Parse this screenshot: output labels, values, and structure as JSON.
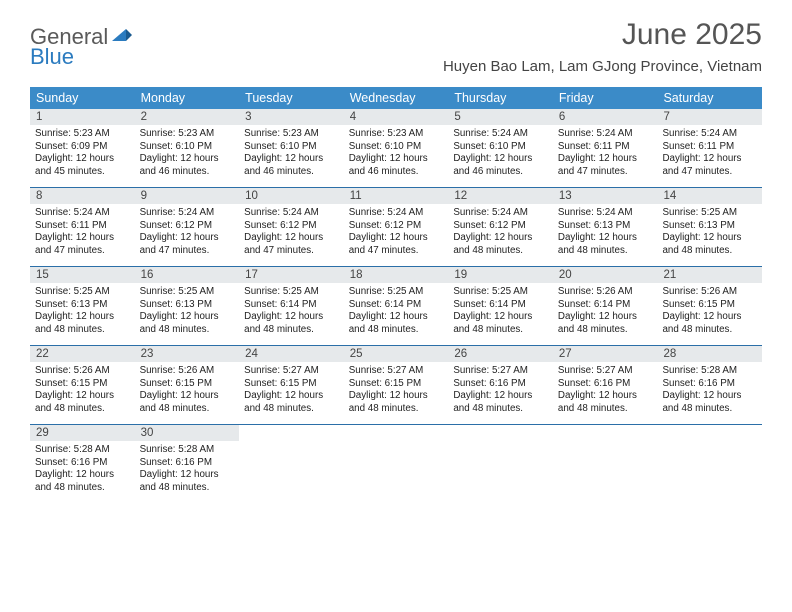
{
  "logo": {
    "general": "General",
    "blue": "Blue"
  },
  "title": "June 2025",
  "subtitle": "Huyen Bao Lam, Lam GJong Province, Vietnam",
  "colors": {
    "header_bg": "#3b8bc8",
    "header_text": "#ffffff",
    "daynum_bg": "#e6e9eb",
    "week_border": "#2b6fa8",
    "title_color": "#555555",
    "logo_blue": "#2b7bbf",
    "logo_gray": "#5a5a5a"
  },
  "day_names": [
    "Sunday",
    "Monday",
    "Tuesday",
    "Wednesday",
    "Thursday",
    "Friday",
    "Saturday"
  ],
  "weeks": [
    [
      {
        "n": "1",
        "sr": "5:23 AM",
        "ss": "6:09 PM",
        "dl": "12 hours and 45 minutes."
      },
      {
        "n": "2",
        "sr": "5:23 AM",
        "ss": "6:10 PM",
        "dl": "12 hours and 46 minutes."
      },
      {
        "n": "3",
        "sr": "5:23 AM",
        "ss": "6:10 PM",
        "dl": "12 hours and 46 minutes."
      },
      {
        "n": "4",
        "sr": "5:23 AM",
        "ss": "6:10 PM",
        "dl": "12 hours and 46 minutes."
      },
      {
        "n": "5",
        "sr": "5:24 AM",
        "ss": "6:10 PM",
        "dl": "12 hours and 46 minutes."
      },
      {
        "n": "6",
        "sr": "5:24 AM",
        "ss": "6:11 PM",
        "dl": "12 hours and 47 minutes."
      },
      {
        "n": "7",
        "sr": "5:24 AM",
        "ss": "6:11 PM",
        "dl": "12 hours and 47 minutes."
      }
    ],
    [
      {
        "n": "8",
        "sr": "5:24 AM",
        "ss": "6:11 PM",
        "dl": "12 hours and 47 minutes."
      },
      {
        "n": "9",
        "sr": "5:24 AM",
        "ss": "6:12 PM",
        "dl": "12 hours and 47 minutes."
      },
      {
        "n": "10",
        "sr": "5:24 AM",
        "ss": "6:12 PM",
        "dl": "12 hours and 47 minutes."
      },
      {
        "n": "11",
        "sr": "5:24 AM",
        "ss": "6:12 PM",
        "dl": "12 hours and 47 minutes."
      },
      {
        "n": "12",
        "sr": "5:24 AM",
        "ss": "6:12 PM",
        "dl": "12 hours and 48 minutes."
      },
      {
        "n": "13",
        "sr": "5:24 AM",
        "ss": "6:13 PM",
        "dl": "12 hours and 48 minutes."
      },
      {
        "n": "14",
        "sr": "5:25 AM",
        "ss": "6:13 PM",
        "dl": "12 hours and 48 minutes."
      }
    ],
    [
      {
        "n": "15",
        "sr": "5:25 AM",
        "ss": "6:13 PM",
        "dl": "12 hours and 48 minutes."
      },
      {
        "n": "16",
        "sr": "5:25 AM",
        "ss": "6:13 PM",
        "dl": "12 hours and 48 minutes."
      },
      {
        "n": "17",
        "sr": "5:25 AM",
        "ss": "6:14 PM",
        "dl": "12 hours and 48 minutes."
      },
      {
        "n": "18",
        "sr": "5:25 AM",
        "ss": "6:14 PM",
        "dl": "12 hours and 48 minutes."
      },
      {
        "n": "19",
        "sr": "5:25 AM",
        "ss": "6:14 PM",
        "dl": "12 hours and 48 minutes."
      },
      {
        "n": "20",
        "sr": "5:26 AM",
        "ss": "6:14 PM",
        "dl": "12 hours and 48 minutes."
      },
      {
        "n": "21",
        "sr": "5:26 AM",
        "ss": "6:15 PM",
        "dl": "12 hours and 48 minutes."
      }
    ],
    [
      {
        "n": "22",
        "sr": "5:26 AM",
        "ss": "6:15 PM",
        "dl": "12 hours and 48 minutes."
      },
      {
        "n": "23",
        "sr": "5:26 AM",
        "ss": "6:15 PM",
        "dl": "12 hours and 48 minutes."
      },
      {
        "n": "24",
        "sr": "5:27 AM",
        "ss": "6:15 PM",
        "dl": "12 hours and 48 minutes."
      },
      {
        "n": "25",
        "sr": "5:27 AM",
        "ss": "6:15 PM",
        "dl": "12 hours and 48 minutes."
      },
      {
        "n": "26",
        "sr": "5:27 AM",
        "ss": "6:16 PM",
        "dl": "12 hours and 48 minutes."
      },
      {
        "n": "27",
        "sr": "5:27 AM",
        "ss": "6:16 PM",
        "dl": "12 hours and 48 minutes."
      },
      {
        "n": "28",
        "sr": "5:28 AM",
        "ss": "6:16 PM",
        "dl": "12 hours and 48 minutes."
      }
    ],
    [
      {
        "n": "29",
        "sr": "5:28 AM",
        "ss": "6:16 PM",
        "dl": "12 hours and 48 minutes."
      },
      {
        "n": "30",
        "sr": "5:28 AM",
        "ss": "6:16 PM",
        "dl": "12 hours and 48 minutes."
      },
      null,
      null,
      null,
      null,
      null
    ]
  ],
  "labels": {
    "sunrise": "Sunrise:",
    "sunset": "Sunset:",
    "daylight": "Daylight:"
  }
}
